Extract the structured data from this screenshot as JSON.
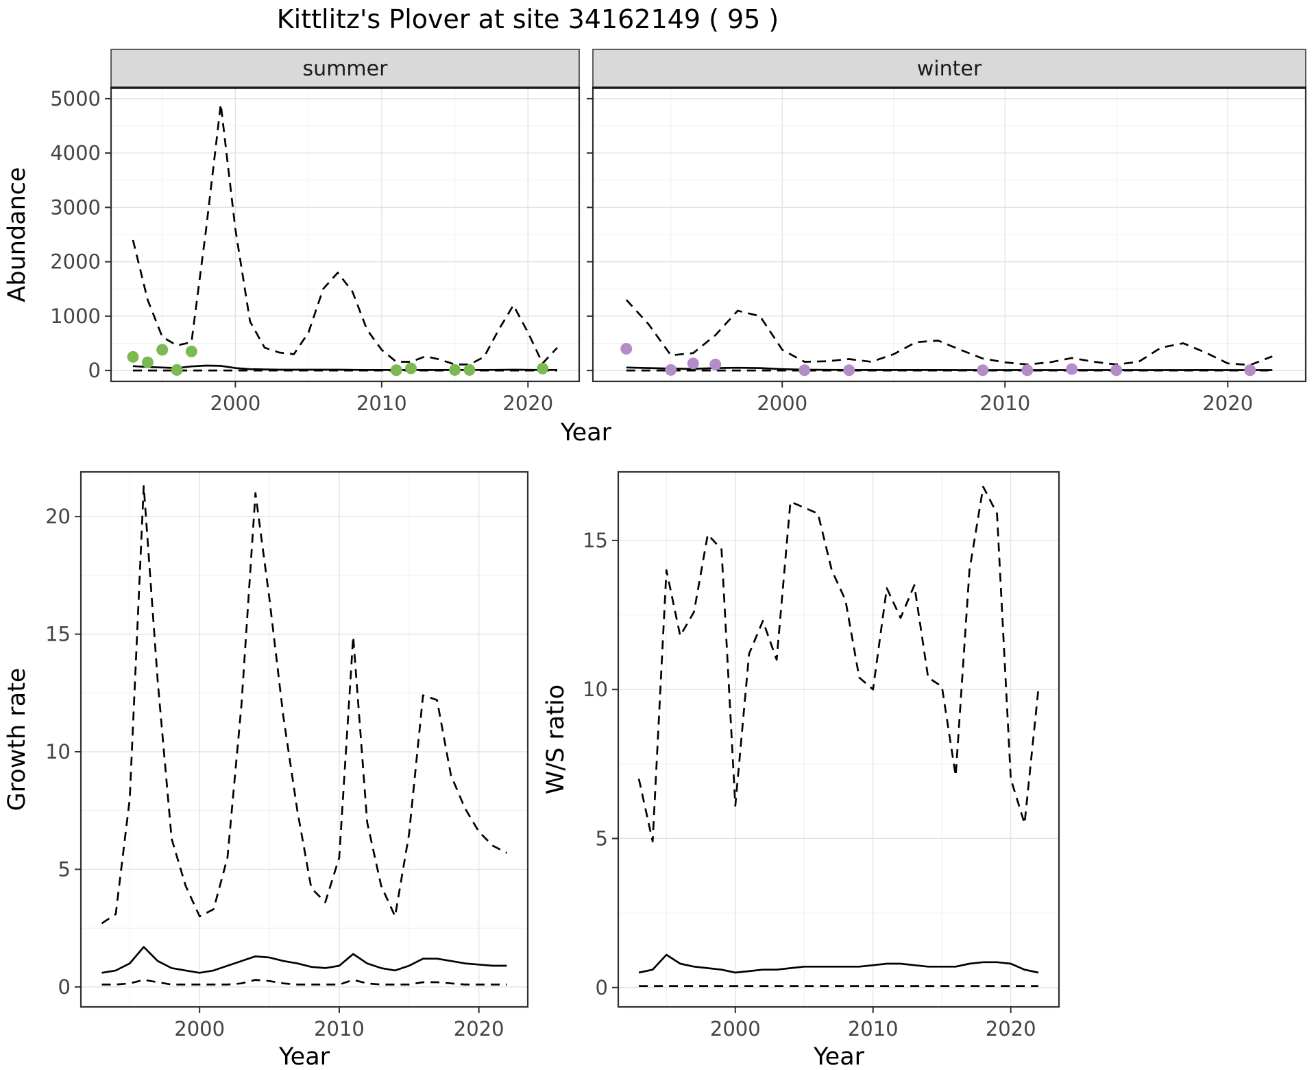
{
  "title": "Kittlitz's Plover at site 34162149 ( 95 )",
  "colors": {
    "summer_point": "#7CB952",
    "winter_point": "#B48CC8",
    "line": "#000000",
    "strip_bg": "#D9D9D9",
    "strip_text": "#1A1A1A",
    "panel_border": "#2F2F2F",
    "grid_major": "#E3E3E3",
    "grid_minor": "#F0F0F0",
    "tick_text": "#444444",
    "axis_title": "#000000"
  },
  "chart_data": [
    {
      "id": "abundance-summer",
      "type": "line",
      "facet_label": "summer",
      "ylabel": "Abundance",
      "xlabel": "Year",
      "xlim": [
        1991.5,
        2023.5
      ],
      "ylim": [
        -200,
        5200
      ],
      "xticks": [
        2000,
        2010,
        2020
      ],
      "yticks": [
        0,
        1000,
        2000,
        3000,
        4000,
        5000
      ],
      "years": [
        1993,
        1994,
        1995,
        1996,
        1997,
        1998,
        1999,
        2000,
        2001,
        2002,
        2003,
        2004,
        2005,
        2006,
        2007,
        2008,
        2009,
        2010,
        2011,
        2012,
        2013,
        2014,
        2015,
        2016,
        2017,
        2018,
        2019,
        2020,
        2021,
        2022
      ],
      "series": [
        {
          "name": "upper-ci",
          "style": "dashed",
          "values": [
            2400,
            1300,
            620,
            460,
            520,
            2600,
            4900,
            2600,
            900,
            420,
            330,
            300,
            700,
            1500,
            1800,
            1450,
            750,
            380,
            160,
            160,
            260,
            200,
            110,
            110,
            250,
            750,
            1200,
            700,
            130,
            420
          ]
        },
        {
          "name": "median",
          "style": "solid",
          "values": [
            80,
            65,
            55,
            45,
            75,
            90,
            85,
            45,
            25,
            20,
            15,
            15,
            15,
            15,
            15,
            12,
            10,
            10,
            10,
            10,
            10,
            10,
            10,
            10,
            10,
            12,
            15,
            12,
            10,
            10
          ]
        },
        {
          "name": "lower-ci",
          "style": "dashed",
          "values": [
            0,
            0,
            0,
            0,
            0,
            0,
            0,
            0,
            0,
            0,
            0,
            0,
            0,
            0,
            0,
            0,
            0,
            0,
            0,
            0,
            0,
            0,
            0,
            0,
            0,
            0,
            0,
            0,
            0,
            0
          ]
        }
      ],
      "points": {
        "name": "observed-summer-counts",
        "x": [
          1993,
          1994,
          1995,
          1996,
          1997,
          2011,
          2012,
          2015,
          2016,
          2021
        ],
        "y": [
          250,
          150,
          380,
          10,
          350,
          5,
          40,
          10,
          10,
          35
        ]
      }
    },
    {
      "id": "abundance-winter",
      "type": "line",
      "facet_label": "winter",
      "ylabel": "Abundance",
      "xlabel": "Year",
      "xlim": [
        1991.5,
        2023.5
      ],
      "ylim": [
        -200,
        5200
      ],
      "xticks": [
        2000,
        2010,
        2020
      ],
      "yticks": [
        0,
        1000,
        2000,
        3000,
        4000,
        5000
      ],
      "years": [
        1993,
        1994,
        1995,
        1996,
        1997,
        1998,
        1999,
        2000,
        2001,
        2002,
        2003,
        2004,
        2005,
        2006,
        2007,
        2008,
        2009,
        2010,
        2011,
        2012,
        2013,
        2014,
        2015,
        2016,
        2017,
        2018,
        2019,
        2020,
        2021,
        2022
      ],
      "series": [
        {
          "name": "upper-ci",
          "style": "dashed",
          "values": [
            1300,
            850,
            280,
            320,
            650,
            1100,
            1000,
            380,
            160,
            170,
            210,
            160,
            300,
            520,
            550,
            380,
            220,
            150,
            110,
            150,
            230,
            160,
            110,
            160,
            420,
            500,
            330,
            130,
            100,
            260
          ]
        },
        {
          "name": "median",
          "style": "solid",
          "values": [
            55,
            45,
            35,
            30,
            45,
            50,
            45,
            25,
            15,
            12,
            10,
            10,
            10,
            10,
            10,
            8,
            8,
            8,
            8,
            8,
            8,
            8,
            8,
            8,
            8,
            8,
            10,
            8,
            8,
            8
          ]
        },
        {
          "name": "lower-ci",
          "style": "dashed",
          "values": [
            0,
            0,
            0,
            0,
            0,
            0,
            0,
            0,
            0,
            0,
            0,
            0,
            0,
            0,
            0,
            0,
            0,
            0,
            0,
            0,
            0,
            0,
            0,
            0,
            0,
            0,
            0,
            0,
            0,
            0
          ]
        }
      ],
      "points": {
        "name": "observed-winter-counts",
        "x": [
          1993,
          1995,
          1996,
          1997,
          2001,
          2003,
          2009,
          2011,
          2013,
          2015,
          2021
        ],
        "y": [
          400,
          10,
          130,
          110,
          5,
          5,
          5,
          5,
          25,
          5,
          5
        ]
      }
    },
    {
      "id": "growth-rate",
      "type": "line",
      "facet_label": null,
      "ylabel": "Growth rate",
      "xlabel": "Year",
      "xlim": [
        1991.5,
        2023.5
      ],
      "ylim": [
        -0.85,
        21.9
      ],
      "xticks": [
        2000,
        2010,
        2020
      ],
      "yticks": [
        0,
        5,
        10,
        15,
        20
      ],
      "years": [
        1993,
        1994,
        1995,
        1996,
        1997,
        1998,
        1999,
        2000,
        2001,
        2002,
        2003,
        2004,
        2005,
        2006,
        2007,
        2008,
        2009,
        2010,
        2011,
        2012,
        2013,
        2014,
        2015,
        2016,
        2017,
        2018,
        2019,
        2020,
        2021,
        2022
      ],
      "series": [
        {
          "name": "upper-ci",
          "style": "dashed",
          "values": [
            2.7,
            3.1,
            8,
            21.3,
            13,
            6.3,
            4.3,
            3,
            3.3,
            5.5,
            12,
            21,
            16.5,
            11.5,
            7.5,
            4.2,
            3.6,
            5.5,
            14.9,
            7,
            4.3,
            3,
            6.5,
            12.4,
            12.2,
            9,
            7.6,
            6.6,
            6,
            5.7
          ]
        },
        {
          "name": "median",
          "style": "solid",
          "values": [
            0.6,
            0.7,
            1.0,
            1.7,
            1.1,
            0.8,
            0.7,
            0.6,
            0.7,
            0.9,
            1.1,
            1.3,
            1.25,
            1.1,
            1.0,
            0.85,
            0.8,
            0.9,
            1.4,
            1.0,
            0.8,
            0.7,
            0.9,
            1.2,
            1.2,
            1.1,
            1.0,
            0.95,
            0.9,
            0.9
          ]
        },
        {
          "name": "lower-ci",
          "style": "dashed",
          "values": [
            0.1,
            0.1,
            0.15,
            0.3,
            0.2,
            0.1,
            0.1,
            0.1,
            0.1,
            0.1,
            0.15,
            0.3,
            0.25,
            0.15,
            0.1,
            0.1,
            0.1,
            0.1,
            0.3,
            0.15,
            0.1,
            0.1,
            0.1,
            0.2,
            0.2,
            0.15,
            0.1,
            0.1,
            0.1,
            0.1
          ]
        }
      ],
      "points": null
    },
    {
      "id": "ws-ratio",
      "type": "line",
      "facet_label": null,
      "ylabel": "W/S ratio",
      "xlabel": "Year",
      "xlim": [
        1991.5,
        2023.5
      ],
      "ylim": [
        -0.65,
        17.3
      ],
      "xticks": [
        2000,
        2010,
        2020
      ],
      "yticks": [
        0,
        5,
        10,
        15
      ],
      "years": [
        1993,
        1994,
        1995,
        1996,
        1997,
        1998,
        1999,
        2000,
        2001,
        2002,
        2003,
        2004,
        2005,
        2006,
        2007,
        2008,
        2009,
        2010,
        2011,
        2012,
        2013,
        2014,
        2015,
        2016,
        2017,
        2018,
        2019,
        2020,
        2021,
        2022
      ],
      "series": [
        {
          "name": "upper-ci",
          "style": "dashed",
          "values": [
            7,
            4.9,
            14,
            11.8,
            12.6,
            15.2,
            14.7,
            6.1,
            11.2,
            12.3,
            11,
            16.3,
            16.1,
            15.9,
            14,
            13,
            10.4,
            10,
            13.4,
            12.4,
            13.5,
            10.4,
            10.1,
            7.1,
            14,
            16.8,
            15.9,
            7,
            5.5,
            10
          ]
        },
        {
          "name": "median",
          "style": "solid",
          "values": [
            0.5,
            0.6,
            1.1,
            0.8,
            0.7,
            0.65,
            0.6,
            0.5,
            0.55,
            0.6,
            0.6,
            0.65,
            0.7,
            0.7,
            0.7,
            0.7,
            0.7,
            0.75,
            0.8,
            0.8,
            0.75,
            0.7,
            0.7,
            0.7,
            0.8,
            0.85,
            0.85,
            0.8,
            0.6,
            0.5
          ]
        },
        {
          "name": "lower-ci",
          "style": "dashed",
          "values": [
            0.05,
            0.05,
            0.05,
            0.05,
            0.05,
            0.05,
            0.05,
            0.05,
            0.05,
            0.05,
            0.05,
            0.05,
            0.05,
            0.05,
            0.05,
            0.05,
            0.05,
            0.05,
            0.05,
            0.05,
            0.05,
            0.05,
            0.05,
            0.05,
            0.05,
            0.05,
            0.05,
            0.05,
            0.05,
            0.05
          ]
        }
      ],
      "points": null
    }
  ]
}
